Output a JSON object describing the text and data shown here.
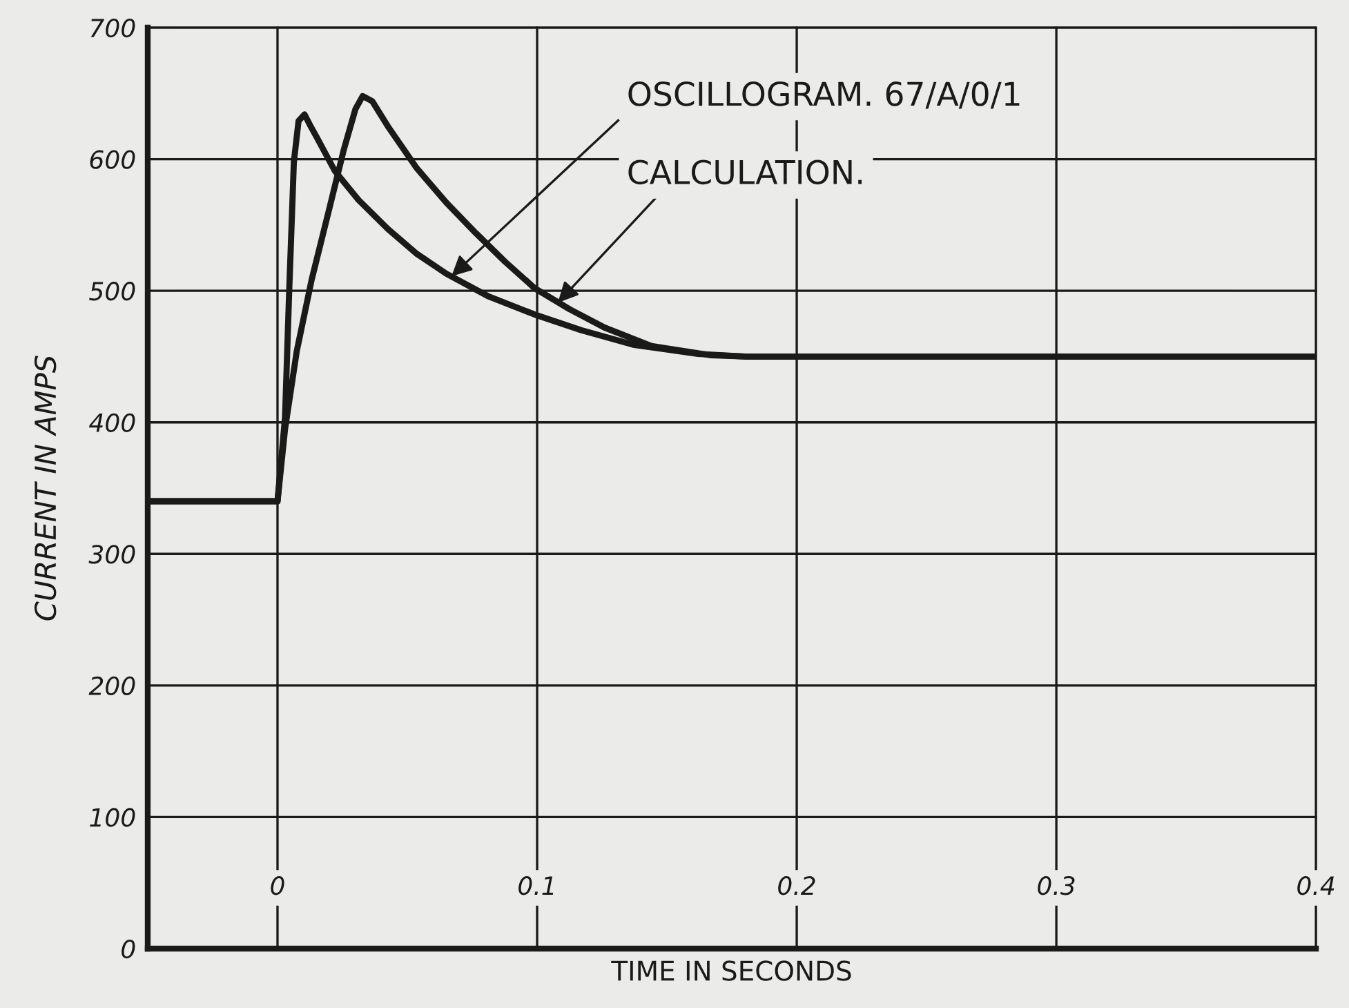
{
  "chart_data": {
    "type": "line",
    "xlabel": "TIME IN SECONDS",
    "ylabel": "CURRENT IN AMPS",
    "xlim": [
      -0.05,
      0.4
    ],
    "ylim": [
      0,
      700
    ],
    "xticks": [
      0,
      0.1,
      0.2,
      0.3,
      0.4
    ],
    "yticks": [
      0,
      100,
      200,
      300,
      400,
      500,
      600,
      700
    ],
    "grid": true,
    "series": [
      {
        "color": "#1a1a1a",
        "x": [
          -0.05,
          0,
          0.0029,
          0.0045,
          0.0063,
          0.0081,
          0.0104,
          0.0125,
          0.0153,
          0.0221,
          0.0312,
          0.0425,
          0.0537,
          0.065,
          0.081,
          0.099,
          0.117,
          0.137,
          0.162,
          0.18,
          0.4
        ],
        "values": [
          340,
          340,
          404,
          500,
          598,
          629,
          634,
          626,
          616,
          591,
          569,
          547,
          528,
          513,
          496,
          482,
          470,
          459,
          452,
          450,
          450
        ]
      },
      {
        "color": "#1a1a1a",
        "x": [
          -0.05,
          0,
          0.0029,
          0.0074,
          0.0131,
          0.0199,
          0.0255,
          0.03,
          0.0328,
          0.0365,
          0.0425,
          0.0537,
          0.065,
          0.0763,
          0.0877,
          0.099,
          0.1125,
          0.126,
          0.144,
          0.167,
          0.18,
          0.4
        ],
        "values": [
          340,
          340,
          395,
          454,
          508,
          562,
          607,
          638,
          648,
          644,
          625,
          593,
          567,
          544,
          522,
          502,
          486,
          472,
          458,
          451,
          450,
          450
        ]
      }
    ],
    "annotations": [
      {
        "text": "OSCILLOGRAM. 67/A/0/1",
        "x": 0.067,
        "y": 511
      },
      {
        "text": "CALCULATION.",
        "x": 0.108,
        "y": 491
      }
    ]
  }
}
